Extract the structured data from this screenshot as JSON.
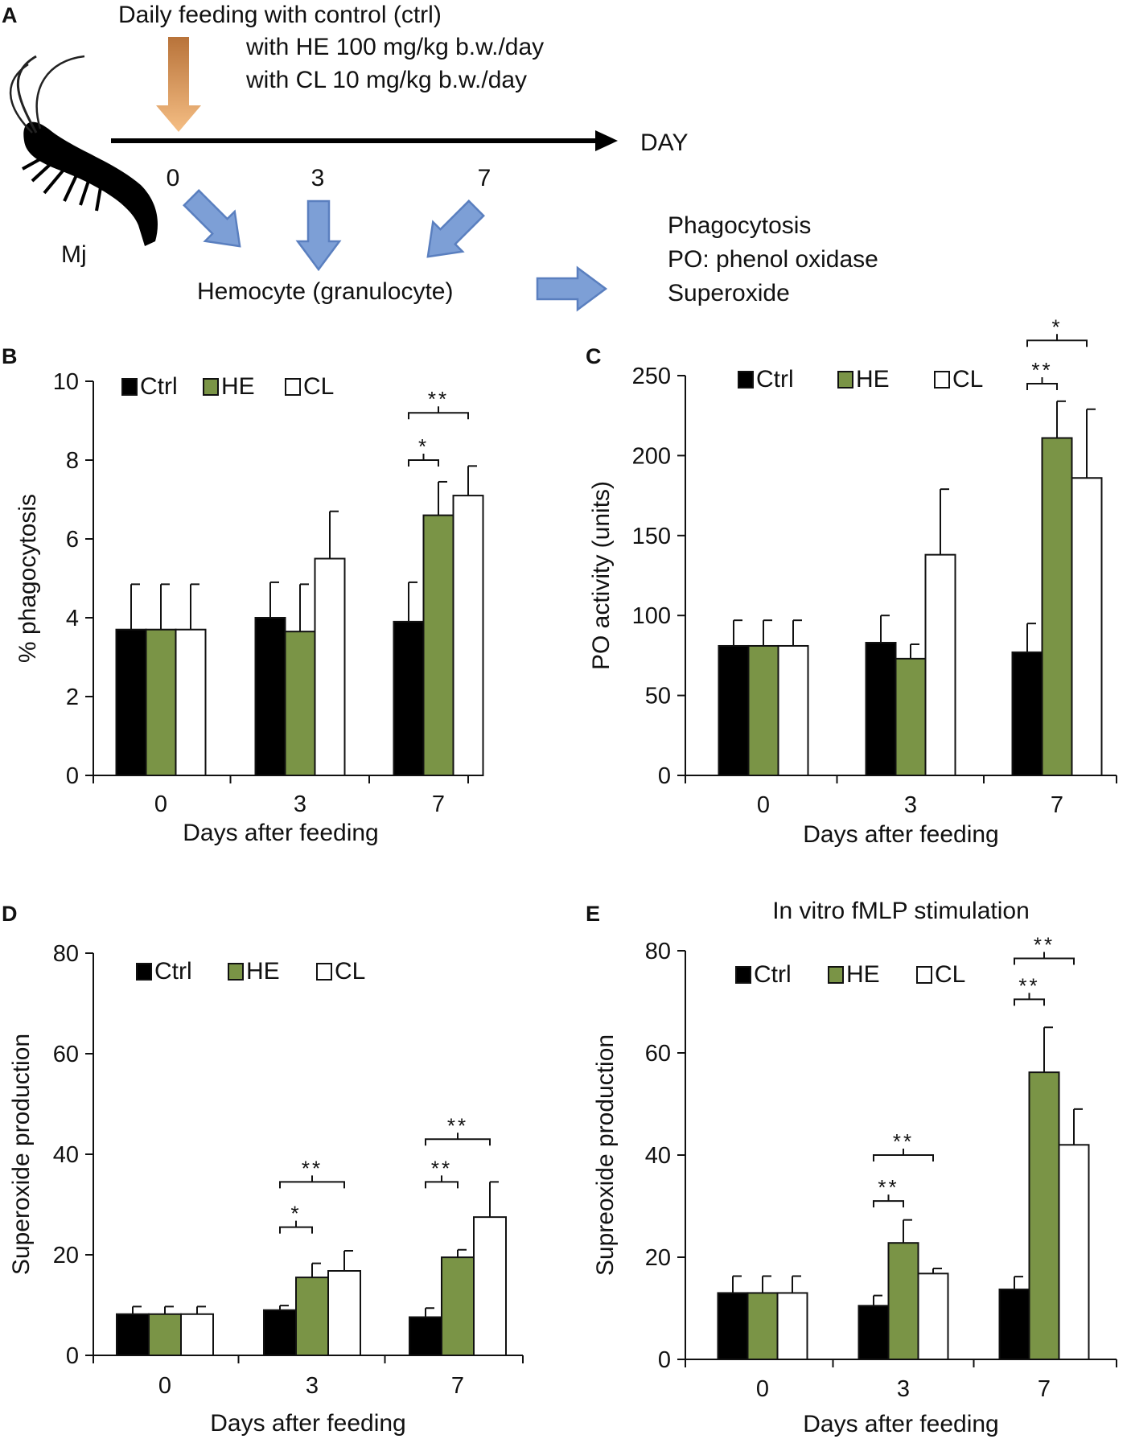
{
  "colors": {
    "ctrl": "#000000",
    "he": "#7a9446",
    "cl": "#ffffff",
    "feed_arrow": "#e8a25e",
    "flow_arrow": "#7d9fd6",
    "flow_arrow_edge": "#5a7fbf"
  },
  "panel_a": {
    "letter": "A",
    "feeding_line1": "Daily feeding with control (ctrl)",
    "feeding_line2": "with HE 100 mg/kg b.w./day",
    "feeding_line3": "with CL 10 mg/kg b.w./day",
    "axis_label": "DAY",
    "day_ticks": [
      "0",
      "3",
      "7"
    ],
    "species": "Mj",
    "hemocyte": "Hemocyte (granulocyte)",
    "assay1": "Phagocytosis",
    "assay2": "PO: phenol oxidase",
    "assay3": "Superoxide"
  },
  "chart_data": [
    {
      "panel": "B",
      "type": "bar",
      "title": "",
      "categories": [
        "0",
        "3",
        "7"
      ],
      "xlabel": "Days after feeding",
      "ylabel": "% phagocytosis",
      "ylim": [
        0,
        10
      ],
      "yticks": [
        "0",
        "2",
        "4",
        "6",
        "8",
        "10"
      ],
      "ytick_values": [
        0,
        2,
        4,
        6,
        8,
        10
      ],
      "legend": [
        "Ctrl",
        "HE",
        "CL"
      ],
      "series": [
        {
          "name": "Ctrl",
          "values": [
            3.7,
            4.0,
            3.9
          ],
          "errors": [
            1.15,
            0.9,
            1.0
          ]
        },
        {
          "name": "HE",
          "values": [
            3.7,
            3.65,
            6.6
          ],
          "errors": [
            1.15,
            1.2,
            0.85
          ]
        },
        {
          "name": "CL",
          "values": [
            3.7,
            5.5,
            7.1
          ],
          "errors": [
            1.15,
            1.2,
            0.75
          ]
        }
      ],
      "significance": [
        {
          "group": 2,
          "from": 0,
          "to": 1,
          "label": "*",
          "level": 8.0
        },
        {
          "group": 2,
          "from": 0,
          "to": 2,
          "label": "**",
          "level": 9.2
        }
      ]
    },
    {
      "panel": "C",
      "type": "bar",
      "title": "",
      "categories": [
        "0",
        "3",
        "7"
      ],
      "xlabel": "Days after feeding",
      "ylabel": "PO activity (units)",
      "ylim": [
        0,
        250
      ],
      "yticks": [
        "0",
        "50",
        "100",
        "150",
        "200",
        "250"
      ],
      "ytick_values": [
        0,
        50,
        100,
        150,
        200,
        250
      ],
      "legend": [
        "Ctrl",
        "HE",
        "CL"
      ],
      "series": [
        {
          "name": "Ctrl",
          "values": [
            81,
            83,
            77
          ],
          "errors": [
            16,
            17,
            18
          ]
        },
        {
          "name": "HE",
          "values": [
            81,
            73,
            211
          ],
          "errors": [
            16,
            9,
            23
          ]
        },
        {
          "name": "CL",
          "values": [
            81,
            138,
            186
          ],
          "errors": [
            16,
            41,
            43
          ]
        }
      ],
      "significance": [
        {
          "group": 2,
          "from": 0,
          "to": 1,
          "label": "**",
          "level": 245
        },
        {
          "group": 2,
          "from": 0,
          "to": 2,
          "label": "*",
          "level": 272
        }
      ]
    },
    {
      "panel": "D",
      "type": "bar",
      "title": "",
      "categories": [
        "0",
        "3",
        "7"
      ],
      "xlabel": "Days after feeding",
      "ylabel": "Superoxide production",
      "ylim": [
        0,
        80
      ],
      "yticks": [
        "0",
        "20",
        "40",
        "60",
        "80"
      ],
      "ytick_values": [
        0,
        20,
        40,
        60,
        80
      ],
      "legend": [
        "Ctrl",
        "HE",
        "CL"
      ],
      "series": [
        {
          "name": "Ctrl",
          "values": [
            8.2,
            9.0,
            7.6
          ],
          "errors": [
            1.5,
            0.9,
            1.8
          ]
        },
        {
          "name": "HE",
          "values": [
            8.2,
            15.5,
            19.5
          ],
          "errors": [
            1.5,
            2.8,
            1.5
          ]
        },
        {
          "name": "CL",
          "values": [
            8.2,
            16.8,
            27.5
          ],
          "errors": [
            1.5,
            4.0,
            7.0
          ]
        }
      ],
      "significance": [
        {
          "group": 1,
          "from": 0,
          "to": 1,
          "label": "*",
          "level": 25.5
        },
        {
          "group": 1,
          "from": 0,
          "to": 2,
          "label": "**",
          "level": 34.5
        },
        {
          "group": 2,
          "from": 0,
          "to": 1,
          "label": "**",
          "level": 34.5
        },
        {
          "group": 2,
          "from": 0,
          "to": 2,
          "label": "**",
          "level": 43.0
        }
      ]
    },
    {
      "panel": "E",
      "type": "bar",
      "title": "In vitro fMLP stimulation",
      "categories": [
        "0",
        "3",
        "7"
      ],
      "xlabel": "Days  after feeding",
      "ylabel": "Supreoxide production",
      "ylim": [
        0,
        80
      ],
      "yticks": [
        "0",
        "20",
        "40",
        "60",
        "80"
      ],
      "ytick_values": [
        0,
        20,
        40,
        60,
        80
      ],
      "legend": [
        "Ctrl",
        "HE",
        "CL"
      ],
      "series": [
        {
          "name": "Ctrl",
          "values": [
            13.0,
            10.5,
            13.7
          ],
          "errors": [
            3.3,
            2.0,
            2.5
          ]
        },
        {
          "name": "HE",
          "values": [
            13.0,
            22.8,
            56.2
          ],
          "errors": [
            3.3,
            4.5,
            8.8
          ]
        },
        {
          "name": "CL",
          "values": [
            13.0,
            16.8,
            42.0
          ],
          "errors": [
            3.3,
            1.0,
            7.0
          ]
        }
      ],
      "significance": [
        {
          "group": 1,
          "from": 0,
          "to": 1,
          "label": "**",
          "level": 31.0
        },
        {
          "group": 1,
          "from": 0,
          "to": 2,
          "label": "**",
          "level": 40.0
        },
        {
          "group": 2,
          "from": 0,
          "to": 1,
          "label": "**",
          "level": 70.5
        },
        {
          "group": 2,
          "from": 0,
          "to": 2,
          "label": "**",
          "level": 78.5
        }
      ]
    }
  ]
}
